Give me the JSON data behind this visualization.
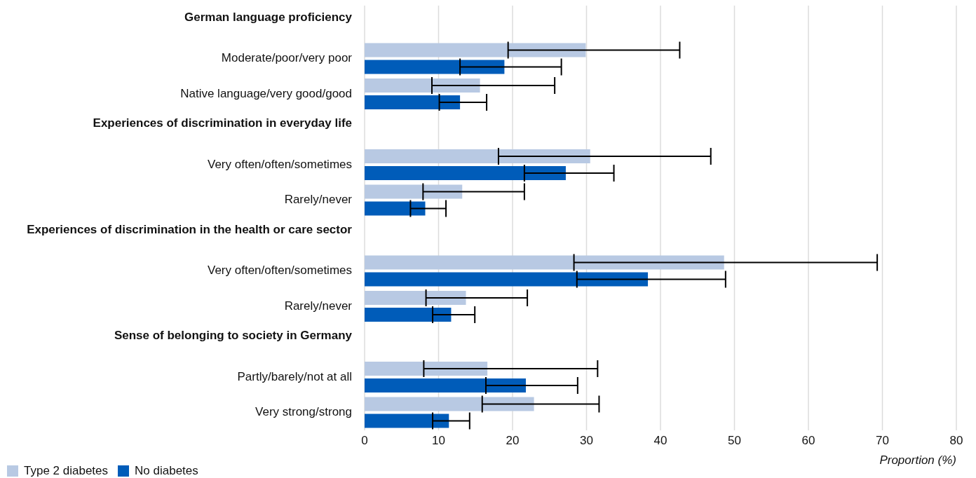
{
  "chart_data": {
    "type": "bar",
    "orientation": "horizontal",
    "xlabel": "Proportion (%)",
    "categories": [
      "German language proficiency",
      "Moderate/poor/very poor",
      "Native language/very good/good",
      "Experiences of discrimination in everyday life",
      "Very often/often/sometimes",
      "Rarely/never",
      "Experiences of discrimination in the health or care sector",
      "Very often/often/sometimes",
      "Rarely/never",
      "Sense of belonging to society in Germany",
      "Partly/barely/not at all",
      "Very strong/strong"
    ],
    "series": [
      {
        "name": "Type 2 diabetes",
        "color": "#b8c9e3",
        "values": [
          null,
          29.9,
          15.6,
          null,
          30.5,
          13.2,
          null,
          48.6,
          13.7,
          null,
          16.6,
          22.9
        ],
        "errors": [
          null,
          [
            19.4,
            42.6
          ],
          [
            9.1,
            25.7
          ],
          null,
          [
            18.1,
            46.8
          ],
          [
            7.9,
            21.6
          ],
          null,
          [
            28.3,
            69.3
          ],
          [
            8.3,
            22.0
          ],
          null,
          [
            8.0,
            31.5
          ],
          [
            15.9,
            31.7
          ]
        ]
      },
      {
        "name": "No diabetes",
        "color": "#005cb9",
        "values": [
          null,
          18.9,
          12.9,
          null,
          27.2,
          8.2,
          null,
          38.3,
          11.7,
          null,
          21.8,
          11.4
        ],
        "errors": [
          null,
          [
            12.9,
            26.6
          ],
          [
            10.1,
            16.5
          ],
          null,
          [
            21.6,
            33.7
          ],
          [
            6.2,
            11.0
          ],
          null,
          [
            28.7,
            48.8
          ],
          [
            9.2,
            14.9
          ],
          null,
          [
            16.4,
            28.8
          ],
          [
            9.2,
            14.2
          ]
        ]
      }
    ],
    "xlim": [
      0,
      80
    ],
    "xticks": [
      0,
      10,
      20,
      30,
      40,
      50,
      60,
      70,
      80
    ],
    "grid": "x",
    "legend": "bottom left"
  }
}
